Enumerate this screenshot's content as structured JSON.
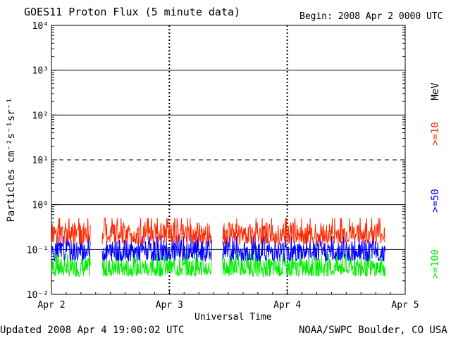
{
  "chart_data": {
    "type": "line",
    "title": "GOES11 Proton Flux (5 minute data)",
    "begin_label": "Begin: 2008 Apr 2 0000 UTC",
    "xlabel": "Universal Time",
    "ylabel": "Particles cm⁻²s⁻¹sr⁻¹",
    "x_ticks": [
      "Apr 2",
      "Apr 3",
      "Apr 4",
      "Apr 5"
    ],
    "x_range_days": [
      0,
      3
    ],
    "yscale": "log",
    "ylim": [
      0.01,
      10000
    ],
    "y_ticks": [
      "10⁻²",
      "10⁻¹",
      "10⁰",
      "10¹",
      "10²",
      "10³",
      "10⁴"
    ],
    "y_tick_exponents": [
      -2,
      -1,
      0,
      1,
      2,
      3,
      4
    ],
    "solid_gridlines": [
      -1,
      0,
      2,
      3
    ],
    "dashed_gridlines": [
      1
    ],
    "unit_label": "MeV",
    "gaps_days": [
      [
        0.48,
        0.6
      ],
      [
        0.37,
        0.43
      ]
    ],
    "series": [
      {
        "name": ">=10",
        "color": "#ff2a00",
        "typical": 0.2,
        "range": [
          0.13,
          0.5
        ]
      },
      {
        "name": ">=50",
        "color": "#0000ff",
        "typical": 0.1,
        "range": [
          0.055,
          0.2
        ]
      },
      {
        "name": ">=100",
        "color": "#00ee00",
        "typical": 0.04,
        "range": [
          0.025,
          0.08
        ]
      }
    ],
    "footer_left": "Updated 2008 Apr  4 19:00:02 UTC",
    "footer_right": "NOAA/SWPC Boulder, CO USA"
  }
}
